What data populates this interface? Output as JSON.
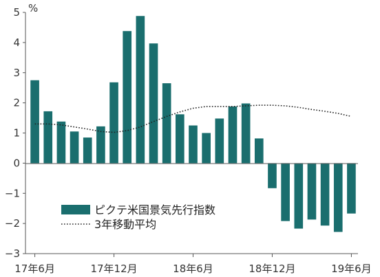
{
  "chart_data": {
    "type": "bar",
    "y_unit": "%",
    "ylim": [
      -3,
      5
    ],
    "y_ticks": [
      "5",
      "4",
      "3",
      "2",
      "1",
      "0",
      "-1",
      "-2",
      "-3"
    ],
    "x_tick_labels": [
      "17年6月",
      "17年12月",
      "18年6月",
      "18年12月",
      "19年6月"
    ],
    "grid": false,
    "legend_position": "lower-left",
    "colors": {
      "bar": "#1a6e6e",
      "line": "#222222",
      "axis": "#555555"
    },
    "series": [
      {
        "name": "ピクテ米国景気先行指数",
        "type": "bar",
        "values": [
          2.75,
          1.72,
          1.38,
          1.05,
          0.85,
          1.22,
          2.68,
          4.38,
          4.88,
          3.97,
          2.65,
          1.62,
          1.25,
          1.0,
          1.48,
          1.88,
          1.98,
          0.82,
          -0.83,
          -1.92,
          -2.17,
          -1.87,
          -2.07,
          -2.28,
          -1.67
        ]
      },
      {
        "name": "3年移動平均",
        "type": "line",
        "style": "dotted",
        "values": [
          1.3,
          1.3,
          1.27,
          1.2,
          1.13,
          1.05,
          1.02,
          1.08,
          1.2,
          1.38,
          1.55,
          1.7,
          1.82,
          1.88,
          1.88,
          1.88,
          1.9,
          1.92,
          1.92,
          1.9,
          1.85,
          1.78,
          1.72,
          1.65,
          1.55
        ]
      }
    ]
  }
}
